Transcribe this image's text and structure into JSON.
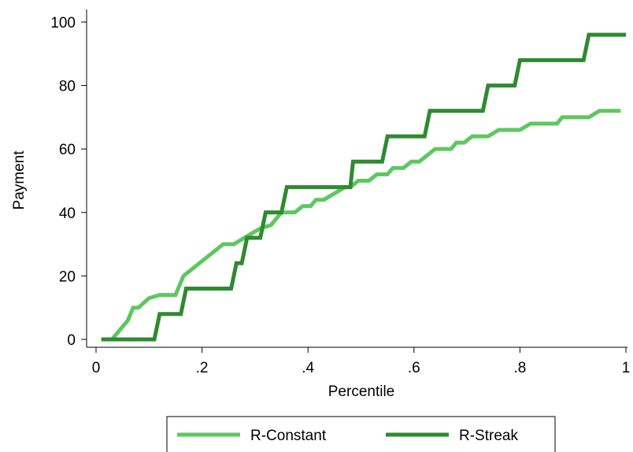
{
  "chart_data": {
    "type": "line",
    "title": "",
    "xlabel": "Percentile",
    "ylabel": "Payment",
    "xlim": [
      0,
      1
    ],
    "ylim": [
      0,
      100
    ],
    "grid": false,
    "legend_position": "bottom",
    "x_ticks": [
      {
        "value": 0,
        "label": "0"
      },
      {
        "value": 0.2,
        "label": ".2"
      },
      {
        "value": 0.4,
        "label": ".4"
      },
      {
        "value": 0.6,
        "label": ".6"
      },
      {
        "value": 0.8,
        "label": ".8"
      },
      {
        "value": 1,
        "label": "1"
      }
    ],
    "y_ticks": [
      {
        "value": 0,
        "label": "0"
      },
      {
        "value": 20,
        "label": "20"
      },
      {
        "value": 40,
        "label": "40"
      },
      {
        "value": 60,
        "label": "60"
      },
      {
        "value": 80,
        "label": "80"
      },
      {
        "value": 100,
        "label": "100"
      }
    ],
    "series": [
      {
        "name": "R-Constant",
        "color": "#5dc860",
        "points": [
          [
            0.01,
            0
          ],
          [
            0.03,
            0
          ],
          [
            0.06,
            6
          ],
          [
            0.07,
            10
          ],
          [
            0.08,
            10
          ],
          [
            0.1,
            13
          ],
          [
            0.12,
            14
          ],
          [
            0.15,
            14
          ],
          [
            0.165,
            20
          ],
          [
            0.24,
            30
          ],
          [
            0.26,
            30
          ],
          [
            0.28,
            32
          ],
          [
            0.31,
            35
          ],
          [
            0.33,
            36
          ],
          [
            0.35,
            40
          ],
          [
            0.375,
            40
          ],
          [
            0.39,
            42
          ],
          [
            0.405,
            42
          ],
          [
            0.415,
            44
          ],
          [
            0.43,
            44
          ],
          [
            0.47,
            48
          ],
          [
            0.48,
            48
          ],
          [
            0.495,
            50
          ],
          [
            0.515,
            50
          ],
          [
            0.53,
            52
          ],
          [
            0.55,
            52
          ],
          [
            0.56,
            54
          ],
          [
            0.58,
            54
          ],
          [
            0.595,
            56
          ],
          [
            0.61,
            56
          ],
          [
            0.64,
            60
          ],
          [
            0.67,
            60
          ],
          [
            0.68,
            62
          ],
          [
            0.695,
            62
          ],
          [
            0.71,
            64
          ],
          [
            0.74,
            64
          ],
          [
            0.76,
            66
          ],
          [
            0.8,
            66
          ],
          [
            0.82,
            68
          ],
          [
            0.87,
            68
          ],
          [
            0.88,
            70
          ],
          [
            0.93,
            70
          ],
          [
            0.95,
            72
          ],
          [
            0.99,
            72
          ]
        ]
      },
      {
        "name": "R-Streak",
        "color": "#2f8a30",
        "points": [
          [
            0.01,
            0
          ],
          [
            0.11,
            0
          ],
          [
            0.12,
            8
          ],
          [
            0.16,
            8
          ],
          [
            0.17,
            16
          ],
          [
            0.255,
            16
          ],
          [
            0.265,
            24
          ],
          [
            0.275,
            24
          ],
          [
            0.285,
            32
          ],
          [
            0.31,
            32
          ],
          [
            0.32,
            40
          ],
          [
            0.35,
            40
          ],
          [
            0.36,
            48
          ],
          [
            0.48,
            48
          ],
          [
            0.485,
            56
          ],
          [
            0.54,
            56
          ],
          [
            0.55,
            64
          ],
          [
            0.62,
            64
          ],
          [
            0.63,
            72
          ],
          [
            0.73,
            72
          ],
          [
            0.74,
            80
          ],
          [
            0.79,
            80
          ],
          [
            0.8,
            88
          ],
          [
            0.92,
            88
          ],
          [
            0.93,
            96
          ],
          [
            1.0,
            96
          ]
        ]
      }
    ]
  }
}
